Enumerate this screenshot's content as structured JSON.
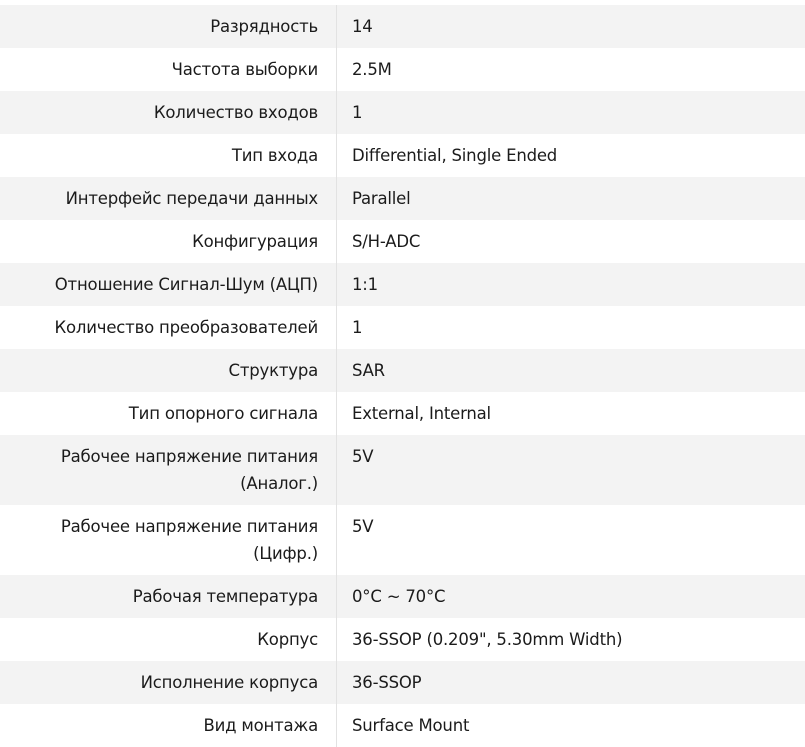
{
  "specs": [
    {
      "label": "Разрядность",
      "value": "14"
    },
    {
      "label": "Частота выборки",
      "value": "2.5M"
    },
    {
      "label": "Количество входов",
      "value": "1"
    },
    {
      "label": "Тип входа",
      "value": "Differential, Single Ended"
    },
    {
      "label": "Интерфейс передачи данных",
      "value": "Parallel"
    },
    {
      "label": "Конфигурация",
      "value": "S/H-ADC"
    },
    {
      "label": "Отношение Сигнал-Шум (АЦП)",
      "value": "1:1"
    },
    {
      "label": "Количество преобразователей",
      "value": "1"
    },
    {
      "label": "Структура",
      "value": "SAR"
    },
    {
      "label": "Тип опорного сигнала",
      "value": "External, Internal"
    },
    {
      "label": "Рабочее напряжение питания (Аналог.)",
      "value": "5V"
    },
    {
      "label": "Рабочее напряжение питания (Цифр.)",
      "value": "5V"
    },
    {
      "label": "Рабочая температура",
      "value": "0°C ~ 70°C"
    },
    {
      "label": "Корпус",
      "value": "36-SSOP (0.209\", 5.30mm Width)"
    },
    {
      "label": "Исполнение корпуса",
      "value": "36-SSOP"
    },
    {
      "label": "Вид монтажа",
      "value": "Surface Mount"
    }
  ]
}
